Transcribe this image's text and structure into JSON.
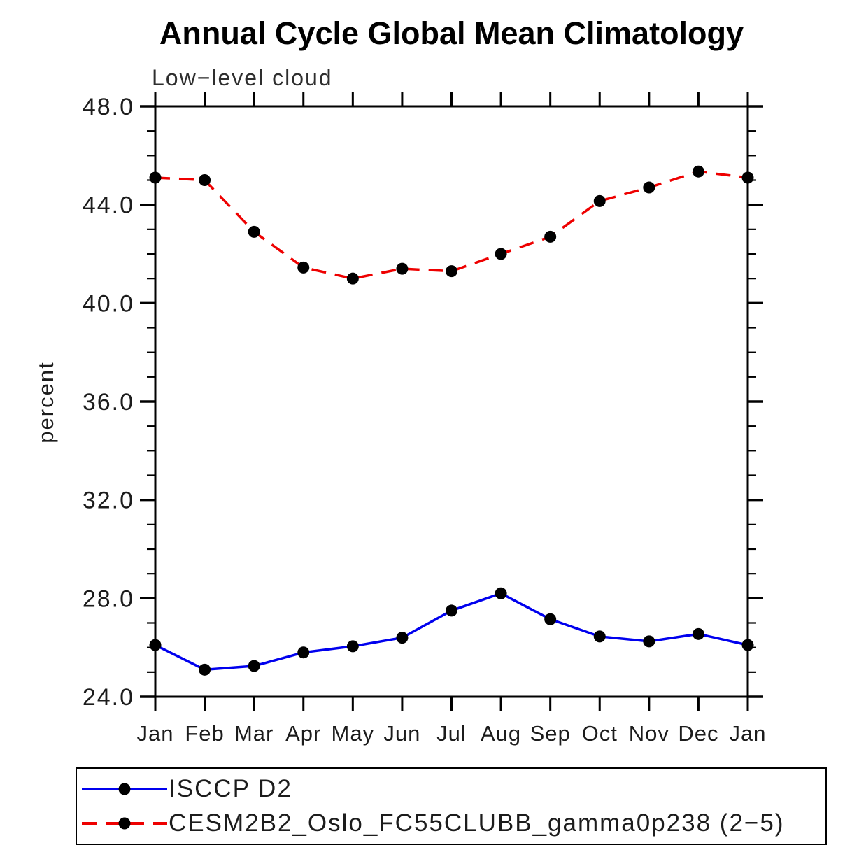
{
  "chart_data": {
    "type": "line",
    "title": "Annual Cycle Global Mean Climatology",
    "subtitle": "Low−level cloud",
    "ylabel": "percent",
    "xlabel": "",
    "categories": [
      "Jan",
      "Feb",
      "Mar",
      "Apr",
      "May",
      "Jun",
      "Jul",
      "Aug",
      "Sep",
      "Oct",
      "Nov",
      "Dec",
      "Jan"
    ],
    "ylim": [
      24.0,
      48.0
    ],
    "ytick_major_step": 4.0,
    "ytick_minor_step": 1.0,
    "ytick_labels": [
      "24.0",
      "28.0",
      "32.0",
      "36.0",
      "40.0",
      "44.0",
      "48.0"
    ],
    "grid": false,
    "legend_position": "bottom-left",
    "axis_color": "#000000",
    "text_color": "#1c1c1c",
    "series": [
      {
        "name": "ISCCP D2",
        "color": "#0000ee",
        "line_style": "solid",
        "marker": "circle",
        "marker_color": "#000000",
        "values": [
          26.1,
          25.1,
          25.25,
          25.8,
          26.05,
          26.4,
          27.5,
          28.2,
          27.15,
          26.45,
          26.25,
          26.55,
          26.1
        ]
      },
      {
        "name": "CESM2B2_Oslo_FC55CLUBB_gamma0p238 (2−5)",
        "color": "#ee0000",
        "line_style": "dashed",
        "marker": "circle",
        "marker_color": "#000000",
        "values": [
          45.1,
          45.0,
          42.9,
          41.45,
          41.0,
          41.4,
          41.3,
          42.0,
          42.7,
          44.15,
          44.7,
          45.35,
          45.1
        ]
      }
    ]
  }
}
